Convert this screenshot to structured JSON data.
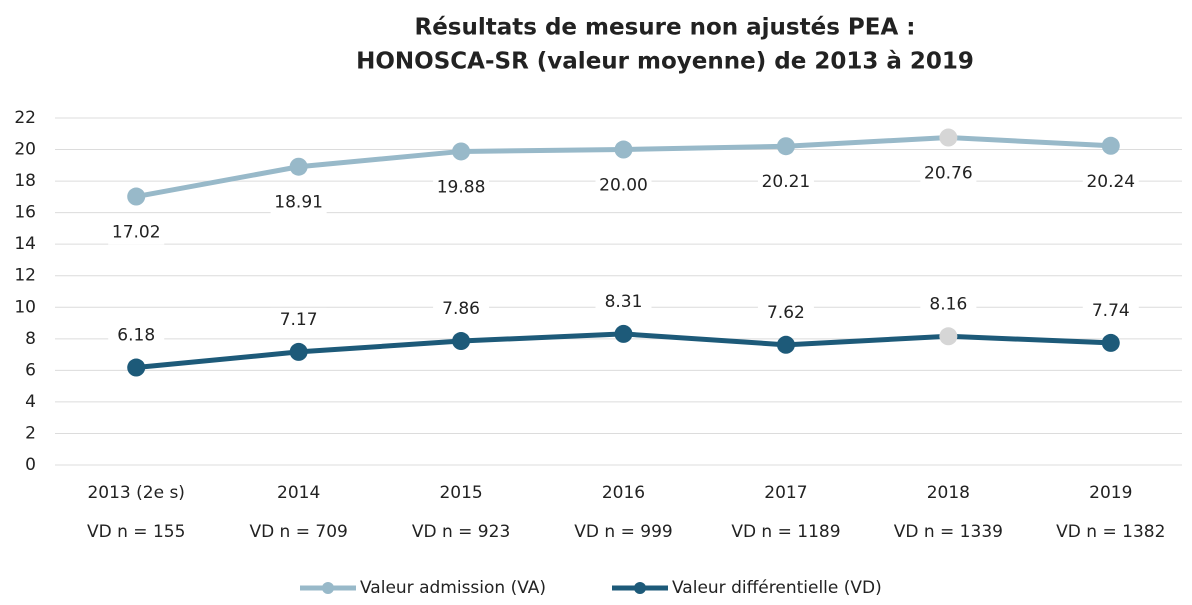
{
  "chart_data": {
    "type": "line",
    "title": [
      "Résultats de mesure non ajustés PEA :",
      "HONOSCA-SR (valeur moyenne) de 2013 à 2019"
    ],
    "categories": [
      "2013 (2e s)",
      "2014",
      "2015",
      "2016",
      "2017",
      "2018",
      "2019"
    ],
    "sample_sizes": [
      "VD n = 155",
      "VD n = 709",
      "VD n = 923",
      "VD n = 999",
      "VD n = 1189",
      "VD n = 1339",
      "VD n = 1382"
    ],
    "series": [
      {
        "name": "Valeur admission (VA)",
        "color": "#98b9c9",
        "label_position": "below",
        "values": [
          17.02,
          18.91,
          19.88,
          20.0,
          20.21,
          20.76,
          20.24
        ],
        "value_labels": [
          "17.02",
          "18.91",
          "19.88",
          "20.00",
          "20.21",
          "20.76",
          "20.24"
        ],
        "point_colors": [
          "#98b9c9",
          "#98b9c9",
          "#98b9c9",
          "#98b9c9",
          "#98b9c9",
          "#d6d6d6",
          "#98b9c9"
        ]
      },
      {
        "name": "Valeur différentielle (VD)",
        "color": "#1d5a79",
        "label_position": "above",
        "values": [
          6.18,
          7.17,
          7.86,
          8.31,
          7.62,
          8.16,
          7.74
        ],
        "value_labels": [
          "6.18",
          "7.17",
          "7.86",
          "8.31",
          "7.62",
          "8.16",
          "7.74"
        ],
        "point_colors": [
          "#1d5a79",
          "#1d5a79",
          "#1d5a79",
          "#1d5a79",
          "#1d5a79",
          "#d6d6d6",
          "#1d5a79"
        ]
      }
    ],
    "ylim": [
      0,
      22
    ],
    "yticks": [
      0,
      2,
      4,
      6,
      8,
      10,
      12,
      14,
      16,
      18,
      20,
      22
    ],
    "grid": true,
    "legend": "bottom"
  }
}
